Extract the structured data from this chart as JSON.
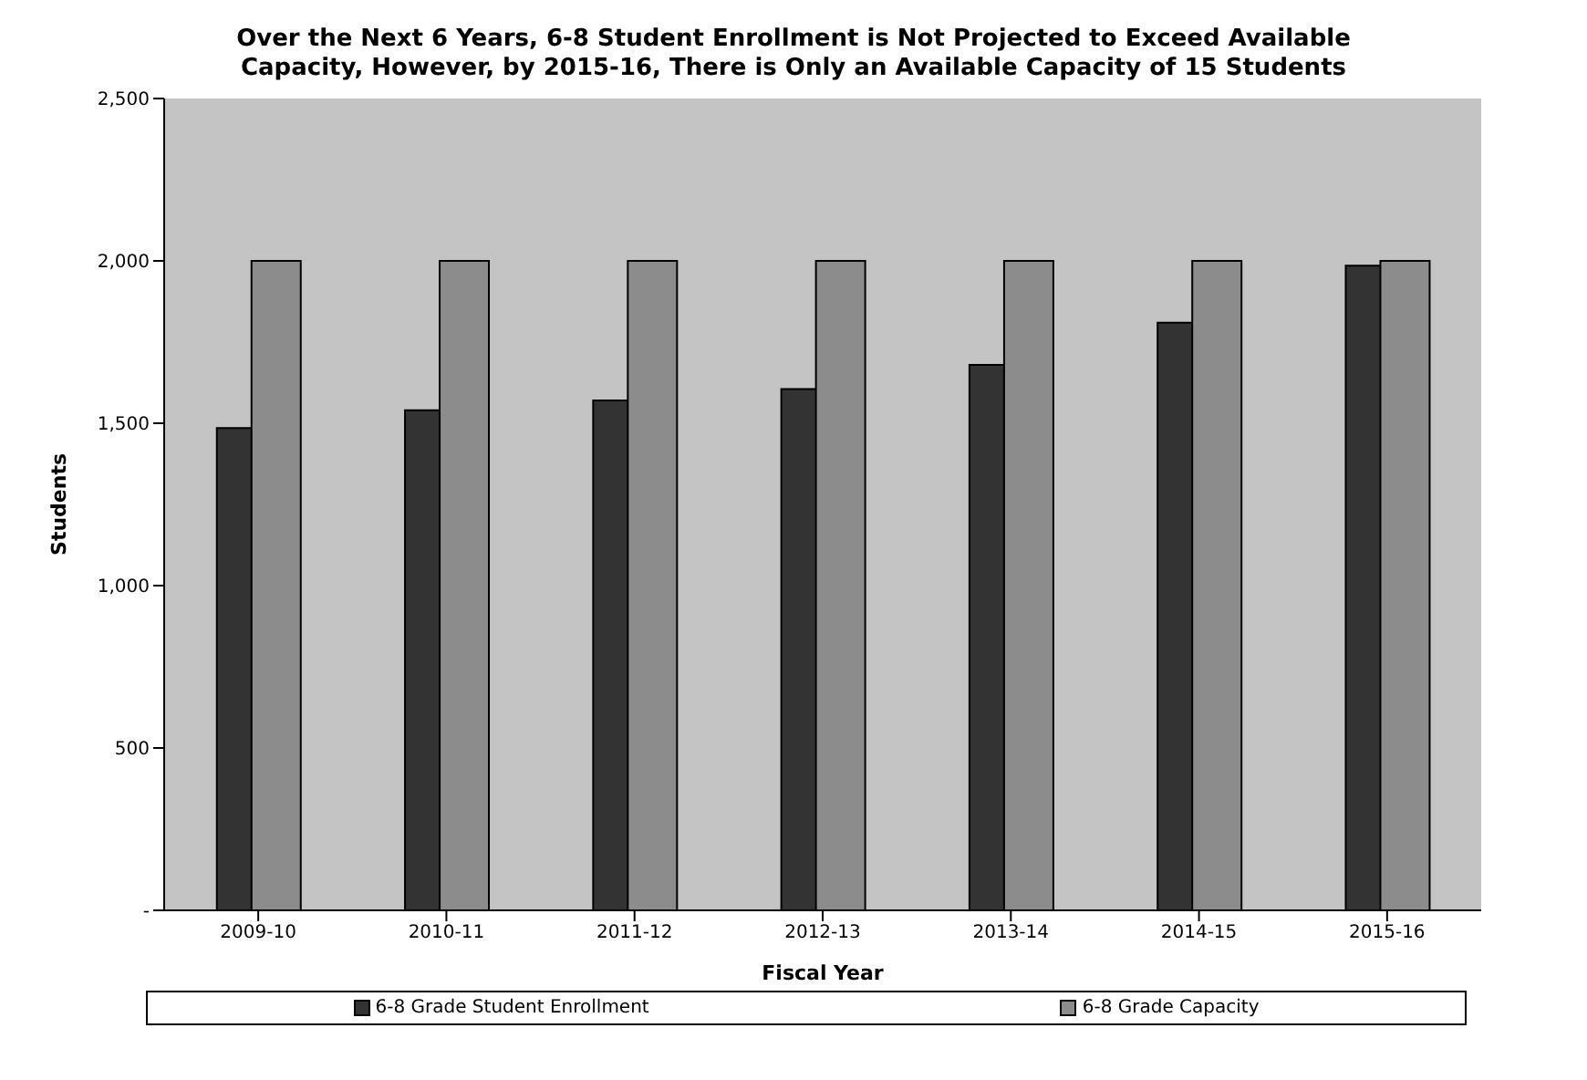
{
  "chart_data": {
    "type": "bar",
    "title": "Over the Next 6 Years, 6-8 Student Enrollment is Not Projected to Exceed Available Capacity, However, by 2015-16, There is Only an Available Capacity of 15 Students",
    "xlabel": "Fiscal Year",
    "ylabel": "Students",
    "categories": [
      "2009-10",
      "2010-11",
      "2011-12",
      "2012-13",
      "2013-14",
      "2014-15",
      "2015-16"
    ],
    "series": [
      {
        "name": "6-8 Grade Student Enrollment",
        "color": "#333333",
        "values": [
          1485,
          1540,
          1570,
          1605,
          1680,
          1810,
          1985
        ]
      },
      {
        "name": "6-8 Grade Capacity",
        "color": "#8c8c8c",
        "values": [
          2000,
          2000,
          2000,
          2000,
          2000,
          2000,
          2000
        ]
      }
    ],
    "ylim": [
      0,
      2500
    ],
    "yticks": [
      {
        "value": 0,
        "label": "-"
      },
      {
        "value": 500,
        "label": "500"
      },
      {
        "value": 1000,
        "label": "1,000"
      },
      {
        "value": 1500,
        "label": "1,500"
      },
      {
        "value": 2000,
        "label": "2,000"
      },
      {
        "value": 2500,
        "label": "2,500"
      }
    ],
    "grid": false,
    "legend": "bottom"
  }
}
